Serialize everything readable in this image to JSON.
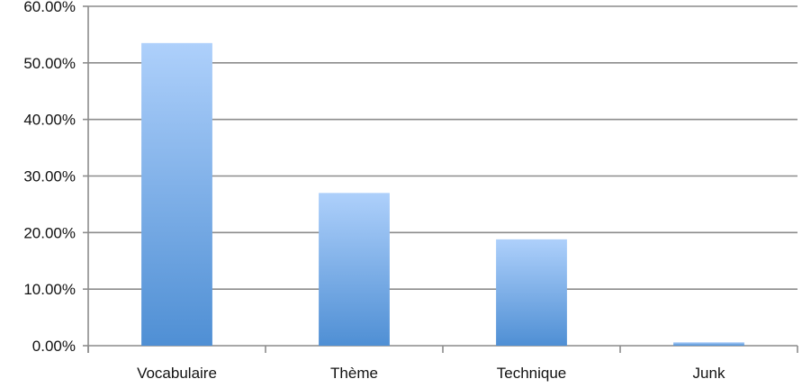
{
  "chart_data": {
    "type": "bar",
    "categories": [
      "Vocabulaire",
      "Thème",
      "Technique",
      "Junk"
    ],
    "values": [
      53.5,
      27.0,
      18.8,
      0.6
    ],
    "ylim": [
      0,
      60
    ],
    "yticks": [
      0,
      10,
      20,
      30,
      40,
      50,
      60
    ],
    "ytick_labels": [
      "0.00%",
      "10.00%",
      "20.00%",
      "30.00%",
      "40.00%",
      "50.00%",
      "60.00%"
    ],
    "title": "",
    "xlabel": "",
    "ylabel": "",
    "grid": true,
    "legend": "none",
    "colors": {
      "bar_top": "#aed0fb",
      "bar_bottom": "#4f8fd4",
      "grid": "#8c8c8c",
      "axis": "#8c8c8c"
    }
  }
}
